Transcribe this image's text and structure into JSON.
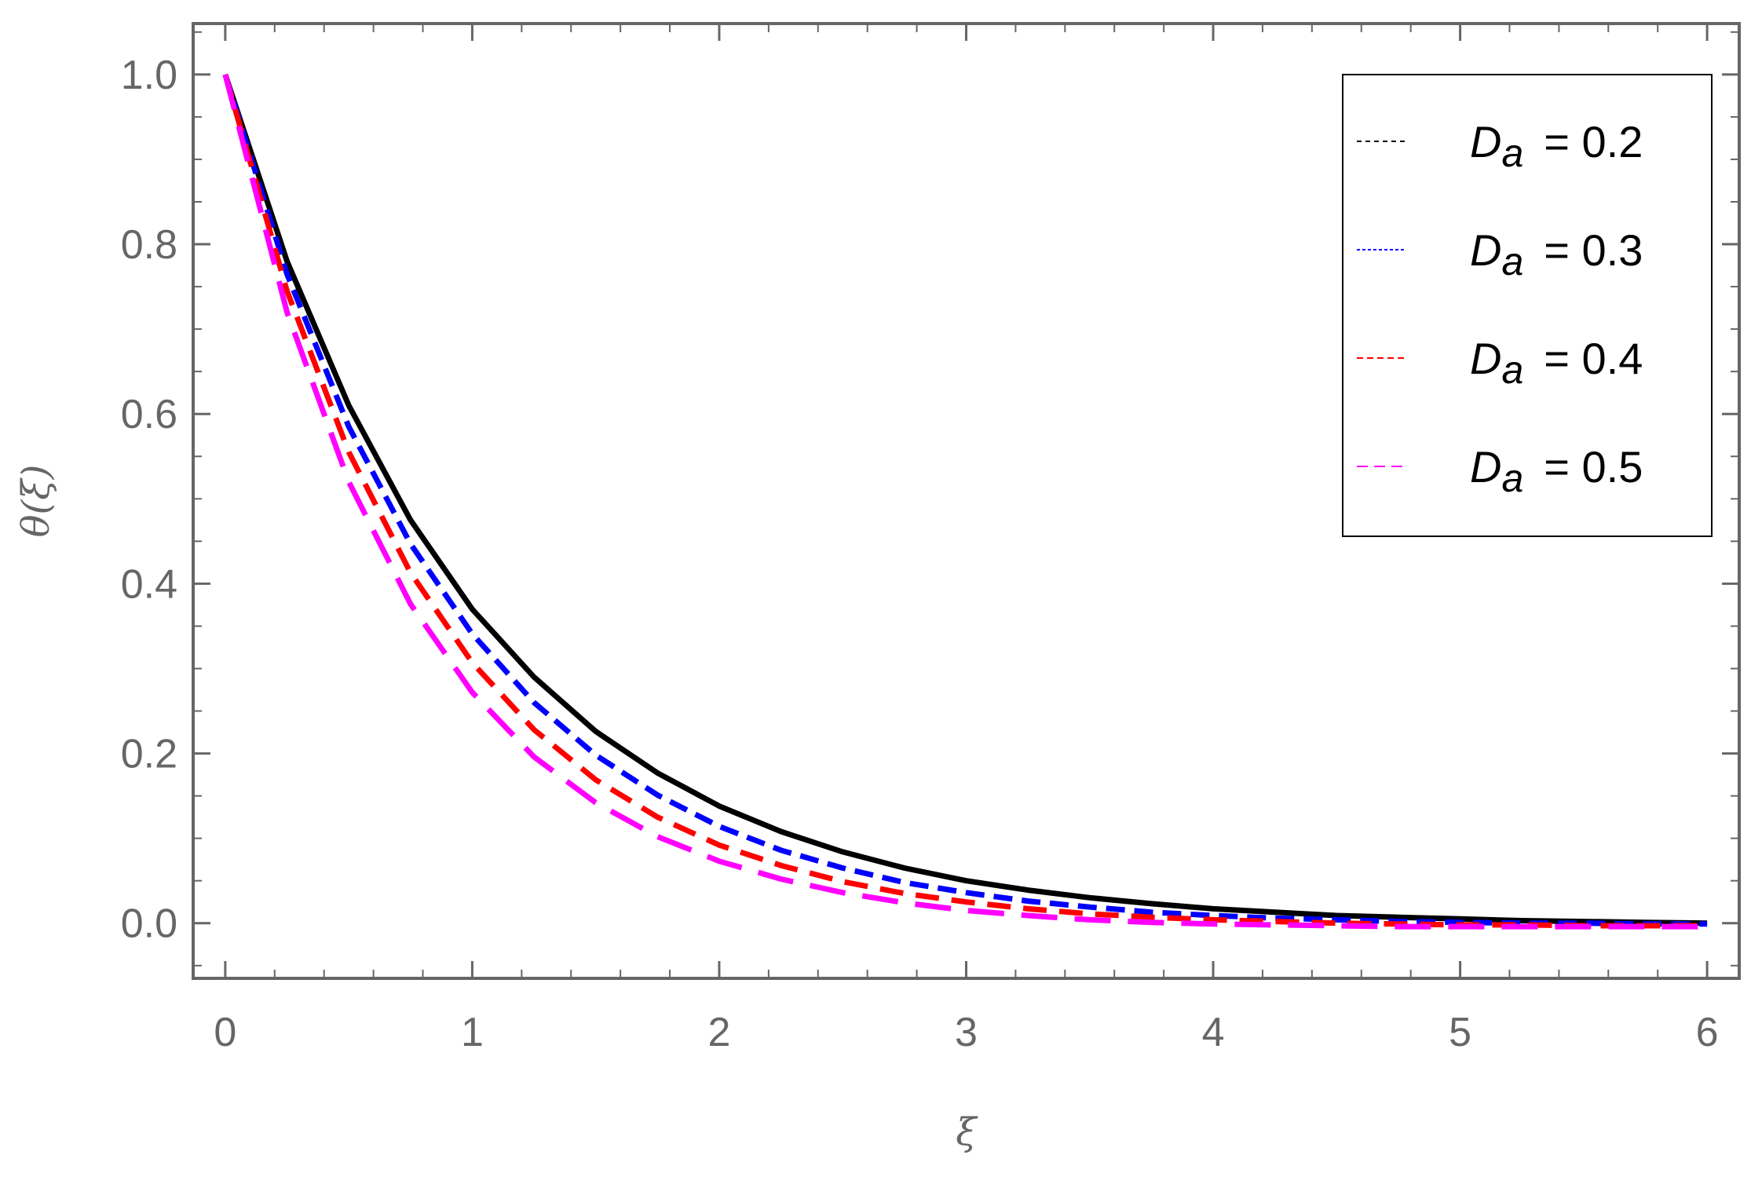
{
  "chart_data": {
    "type": "line",
    "title": "",
    "xlabel": "ξ",
    "ylabel": "θ(ξ)",
    "xlim": [
      -0.13,
      6.13
    ],
    "ylim": [
      -0.065,
      1.06
    ],
    "xticks": [
      0,
      1,
      2,
      3,
      4,
      5,
      6
    ],
    "xtick_labels": [
      "0",
      "1",
      "2",
      "3",
      "4",
      "5",
      "6"
    ],
    "yticks": [
      0.0,
      0.2,
      0.4,
      0.6,
      0.8,
      1.0
    ],
    "ytick_labels": [
      "0.0",
      "0.2",
      "0.4",
      "0.6",
      "0.8",
      "1.0"
    ],
    "grid": false,
    "legend_position": "top-right",
    "x": [
      0,
      0.25,
      0.5,
      0.75,
      1.0,
      1.25,
      1.5,
      1.75,
      2.0,
      2.25,
      2.5,
      2.75,
      3.0,
      3.25,
      3.5,
      3.75,
      4.0,
      4.25,
      4.5,
      4.75,
      5.0,
      5.25,
      5.5,
      5.75,
      6.0
    ],
    "series": [
      {
        "name": "D_a = 0.2",
        "legend_symbol": "D",
        "legend_sub": "a",
        "legend_value": "= 0.2",
        "color": "#000000",
        "line_style": "solid",
        "y": [
          1.0,
          0.78,
          0.61,
          0.475,
          0.37,
          0.29,
          0.226,
          0.177,
          0.138,
          0.108,
          0.084,
          0.065,
          0.05,
          0.039,
          0.03,
          0.023,
          0.017,
          0.013,
          0.009,
          0.007,
          0.005,
          0.003,
          0.002,
          0.001,
          0.0
        ]
      },
      {
        "name": "D_a = 0.3",
        "legend_symbol": "D",
        "legend_sub": "a",
        "legend_value": "= 0.3",
        "color": "#0000ff",
        "line_style": "dashed-short",
        "y": [
          1.0,
          0.765,
          0.585,
          0.447,
          0.341,
          0.26,
          0.198,
          0.151,
          0.114,
          0.086,
          0.065,
          0.048,
          0.036,
          0.026,
          0.019,
          0.013,
          0.009,
          0.006,
          0.004,
          0.002,
          0.001,
          0.0,
          0.0,
          -0.001,
          -0.001
        ]
      },
      {
        "name": "D_a = 0.4",
        "legend_symbol": "D",
        "legend_sub": "a",
        "legend_value": "= 0.4",
        "color": "#ff0000",
        "line_style": "dashed-medium",
        "y": [
          1.0,
          0.745,
          0.555,
          0.413,
          0.307,
          0.228,
          0.169,
          0.125,
          0.092,
          0.068,
          0.049,
          0.035,
          0.025,
          0.017,
          0.011,
          0.007,
          0.004,
          0.002,
          0.0,
          -0.001,
          -0.002,
          -0.002,
          -0.003,
          -0.003,
          -0.003
        ]
      },
      {
        "name": "D_a = 0.5",
        "legend_symbol": "D",
        "legend_sub": "a",
        "legend_value": "= 0.5",
        "color": "#ff00ff",
        "line_style": "dashed-long",
        "y": [
          1.0,
          0.72,
          0.52,
          0.376,
          0.272,
          0.196,
          0.142,
          0.102,
          0.073,
          0.052,
          0.036,
          0.024,
          0.015,
          0.009,
          0.004,
          0.001,
          -0.001,
          -0.002,
          -0.003,
          -0.004,
          -0.004,
          -0.004,
          -0.004,
          -0.004,
          -0.004
        ]
      }
    ]
  }
}
